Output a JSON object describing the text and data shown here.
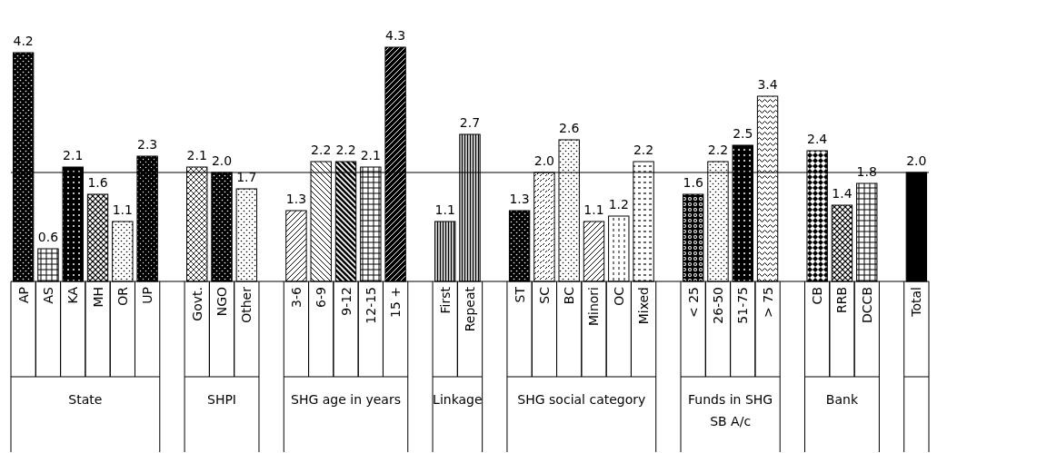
{
  "chart_data": {
    "type": "bar",
    "categories": [
      "AP",
      "AS",
      "KA",
      "MH",
      "OR",
      "UP",
      "Govt.",
      "NGO",
      "Other",
      "3-6",
      "6-9",
      "9-12",
      "12-15",
      "15 +",
      "First",
      "Repeat",
      "ST",
      "SC",
      "BC",
      "Minori",
      "OC",
      "Mixed",
      "< 25",
      "26-50",
      "51-75",
      "> 75",
      "CB",
      "RRB",
      "DCCB",
      "Total"
    ],
    "series": [
      {
        "name": "State",
        "color": "#000000",
        "values": [
          4.2,
          0.6,
          2.1,
          1.6,
          1.1,
          2.3,
          null,
          null,
          null,
          null,
          null,
          null,
          null,
          null,
          null,
          null,
          null,
          null,
          null,
          null,
          null,
          null,
          null,
          null,
          null,
          null,
          null,
          null,
          null,
          null
        ],
        "value_labels": [
          "4.2",
          "0.6",
          "2.1",
          "1.6",
          "1.1",
          "2.3",
          null,
          null,
          null,
          null,
          null,
          null,
          null,
          null,
          null,
          null,
          null,
          null,
          null,
          null,
          null,
          null,
          null,
          null,
          null,
          null,
          null,
          null,
          null,
          null
        ]
      },
      {
        "name": "SHPI",
        "color": "#000000",
        "values": [
          null,
          null,
          null,
          null,
          null,
          null,
          2.1,
          2.0,
          1.7,
          null,
          null,
          null,
          null,
          null,
          null,
          null,
          null,
          null,
          null,
          null,
          null,
          null,
          null,
          null,
          null,
          null,
          null,
          null,
          null,
          null
        ],
        "value_labels": [
          null,
          null,
          null,
          null,
          null,
          null,
          "2.1",
          "2.0",
          "1.7",
          null,
          null,
          null,
          null,
          null,
          null,
          null,
          null,
          null,
          null,
          null,
          null,
          null,
          null,
          null,
          null,
          null,
          null,
          null,
          null,
          null
        ]
      },
      {
        "name": "SHG age in years",
        "color": "#000000",
        "values": [
          null,
          null,
          null,
          null,
          null,
          null,
          null,
          null,
          null,
          1.3,
          2.2,
          2.2,
          2.1,
          4.3,
          null,
          null,
          null,
          null,
          null,
          null,
          null,
          null,
          null,
          null,
          null,
          null,
          null,
          null,
          null,
          null
        ],
        "value_labels": [
          null,
          null,
          null,
          null,
          null,
          null,
          null,
          null,
          null,
          "1.3",
          "2.2",
          "2.2",
          "2.1",
          "4.3",
          null,
          null,
          null,
          null,
          null,
          null,
          null,
          null,
          null,
          null,
          null,
          null,
          null,
          null,
          null,
          null
        ]
      },
      {
        "name": "Linkage",
        "color": "#000000",
        "values": [
          null,
          null,
          null,
          null,
          null,
          null,
          null,
          null,
          null,
          null,
          null,
          null,
          null,
          null,
          1.1,
          2.7,
          null,
          null,
          null,
          null,
          null,
          null,
          null,
          null,
          null,
          null,
          null,
          null,
          null,
          null
        ],
        "value_labels": [
          null,
          null,
          null,
          null,
          null,
          null,
          null,
          null,
          null,
          null,
          null,
          null,
          null,
          null,
          "1.1",
          "2.7",
          null,
          null,
          null,
          null,
          null,
          null,
          null,
          null,
          null,
          null,
          null,
          null,
          null,
          null
        ]
      },
      {
        "name": "SHG social category",
        "color": "#000000",
        "values": [
          null,
          null,
          null,
          null,
          null,
          null,
          null,
          null,
          null,
          null,
          null,
          null,
          null,
          null,
          null,
          null,
          1.3,
          2.0,
          2.6,
          1.1,
          1.2,
          2.2,
          null,
          null,
          null,
          null,
          null,
          null,
          null,
          null
        ],
        "value_labels": [
          null,
          null,
          null,
          null,
          null,
          null,
          null,
          null,
          null,
          null,
          null,
          null,
          null,
          null,
          null,
          null,
          "1.3",
          "2.0",
          "2.6",
          "1.1",
          "1.2",
          "2.2",
          null,
          null,
          null,
          null,
          null,
          null,
          null,
          null
        ]
      },
      {
        "name": "Funds in SHG SB A/c",
        "color": "#000000",
        "values": [
          null,
          null,
          null,
          null,
          null,
          null,
          null,
          null,
          null,
          null,
          null,
          null,
          null,
          null,
          null,
          null,
          null,
          null,
          null,
          null,
          null,
          null,
          1.6,
          2.2,
          2.5,
          3.4,
          null,
          null,
          null,
          null
        ],
        "value_labels": [
          null,
          null,
          null,
          null,
          null,
          null,
          null,
          null,
          null,
          null,
          null,
          null,
          null,
          null,
          null,
          null,
          null,
          null,
          null,
          null,
          null,
          null,
          "1.6",
          "2.2",
          "2.5",
          "3.4",
          null,
          null,
          null,
          null
        ]
      },
      {
        "name": "Bank",
        "color": "#000000",
        "values": [
          null,
          null,
          null,
          null,
          null,
          null,
          null,
          null,
          null,
          null,
          null,
          null,
          null,
          null,
          null,
          null,
          null,
          null,
          null,
          null,
          null,
          null,
          null,
          null,
          null,
          null,
          2.4,
          1.4,
          1.8,
          null
        ],
        "value_labels": [
          null,
          null,
          null,
          null,
          null,
          null,
          null,
          null,
          null,
          null,
          null,
          null,
          null,
          null,
          null,
          null,
          null,
          null,
          null,
          null,
          null,
          null,
          null,
          null,
          null,
          null,
          "2.4",
          "1.4",
          "1.8",
          null
        ]
      },
      {
        "color": "#000000",
        "values": [
          null,
          null,
          null,
          null,
          null,
          null,
          null,
          null,
          null,
          null,
          null,
          null,
          null,
          null,
          null,
          null,
          null,
          null,
          null,
          null,
          null,
          null,
          null,
          null,
          null,
          null,
          null,
          null,
          null,
          2.0
        ],
        "value_labels": [
          null,
          null,
          null,
          null,
          null,
          null,
          null,
          null,
          null,
          null,
          null,
          null,
          null,
          null,
          null,
          null,
          null,
          null,
          null,
          null,
          null,
          null,
          null,
          null,
          null,
          null,
          null,
          null,
          null,
          "2.0"
        ]
      }
    ],
    "ref_lines": [
      {
        "axis": "y",
        "value": 2.0,
        "color": "#000000"
      }
    ]
  }
}
